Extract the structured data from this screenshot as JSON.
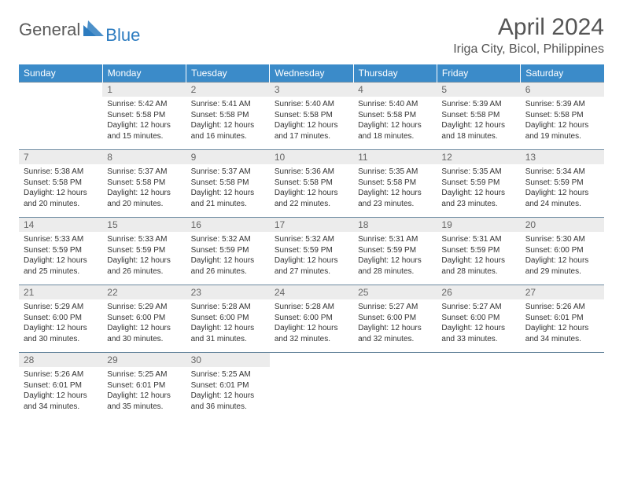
{
  "logo": {
    "text1": "General",
    "text2": "Blue"
  },
  "title": "April 2024",
  "location": "Iriga City, Bicol, Philippines",
  "headers": [
    "Sunday",
    "Monday",
    "Tuesday",
    "Wednesday",
    "Thursday",
    "Friday",
    "Saturday"
  ],
  "header_bg": "#3b8bc9",
  "border_color": "#6c8aa0",
  "daynum_bg": "#ececec",
  "weeks": [
    [
      null,
      {
        "n": "1",
        "sr": "5:42 AM",
        "ss": "5:58 PM",
        "dl": "12 hours and 15 minutes."
      },
      {
        "n": "2",
        "sr": "5:41 AM",
        "ss": "5:58 PM",
        "dl": "12 hours and 16 minutes."
      },
      {
        "n": "3",
        "sr": "5:40 AM",
        "ss": "5:58 PM",
        "dl": "12 hours and 17 minutes."
      },
      {
        "n": "4",
        "sr": "5:40 AM",
        "ss": "5:58 PM",
        "dl": "12 hours and 18 minutes."
      },
      {
        "n": "5",
        "sr": "5:39 AM",
        "ss": "5:58 PM",
        "dl": "12 hours and 18 minutes."
      },
      {
        "n": "6",
        "sr": "5:39 AM",
        "ss": "5:58 PM",
        "dl": "12 hours and 19 minutes."
      }
    ],
    [
      {
        "n": "7",
        "sr": "5:38 AM",
        "ss": "5:58 PM",
        "dl": "12 hours and 20 minutes."
      },
      {
        "n": "8",
        "sr": "5:37 AM",
        "ss": "5:58 PM",
        "dl": "12 hours and 20 minutes."
      },
      {
        "n": "9",
        "sr": "5:37 AM",
        "ss": "5:58 PM",
        "dl": "12 hours and 21 minutes."
      },
      {
        "n": "10",
        "sr": "5:36 AM",
        "ss": "5:58 PM",
        "dl": "12 hours and 22 minutes."
      },
      {
        "n": "11",
        "sr": "5:35 AM",
        "ss": "5:58 PM",
        "dl": "12 hours and 23 minutes."
      },
      {
        "n": "12",
        "sr": "5:35 AM",
        "ss": "5:59 PM",
        "dl": "12 hours and 23 minutes."
      },
      {
        "n": "13",
        "sr": "5:34 AM",
        "ss": "5:59 PM",
        "dl": "12 hours and 24 minutes."
      }
    ],
    [
      {
        "n": "14",
        "sr": "5:33 AM",
        "ss": "5:59 PM",
        "dl": "12 hours and 25 minutes."
      },
      {
        "n": "15",
        "sr": "5:33 AM",
        "ss": "5:59 PM",
        "dl": "12 hours and 26 minutes."
      },
      {
        "n": "16",
        "sr": "5:32 AM",
        "ss": "5:59 PM",
        "dl": "12 hours and 26 minutes."
      },
      {
        "n": "17",
        "sr": "5:32 AM",
        "ss": "5:59 PM",
        "dl": "12 hours and 27 minutes."
      },
      {
        "n": "18",
        "sr": "5:31 AM",
        "ss": "5:59 PM",
        "dl": "12 hours and 28 minutes."
      },
      {
        "n": "19",
        "sr": "5:31 AM",
        "ss": "5:59 PM",
        "dl": "12 hours and 28 minutes."
      },
      {
        "n": "20",
        "sr": "5:30 AM",
        "ss": "6:00 PM",
        "dl": "12 hours and 29 minutes."
      }
    ],
    [
      {
        "n": "21",
        "sr": "5:29 AM",
        "ss": "6:00 PM",
        "dl": "12 hours and 30 minutes."
      },
      {
        "n": "22",
        "sr": "5:29 AM",
        "ss": "6:00 PM",
        "dl": "12 hours and 30 minutes."
      },
      {
        "n": "23",
        "sr": "5:28 AM",
        "ss": "6:00 PM",
        "dl": "12 hours and 31 minutes."
      },
      {
        "n": "24",
        "sr": "5:28 AM",
        "ss": "6:00 PM",
        "dl": "12 hours and 32 minutes."
      },
      {
        "n": "25",
        "sr": "5:27 AM",
        "ss": "6:00 PM",
        "dl": "12 hours and 32 minutes."
      },
      {
        "n": "26",
        "sr": "5:27 AM",
        "ss": "6:00 PM",
        "dl": "12 hours and 33 minutes."
      },
      {
        "n": "27",
        "sr": "5:26 AM",
        "ss": "6:01 PM",
        "dl": "12 hours and 34 minutes."
      }
    ],
    [
      {
        "n": "28",
        "sr": "5:26 AM",
        "ss": "6:01 PM",
        "dl": "12 hours and 34 minutes."
      },
      {
        "n": "29",
        "sr": "5:25 AM",
        "ss": "6:01 PM",
        "dl": "12 hours and 35 minutes."
      },
      {
        "n": "30",
        "sr": "5:25 AM",
        "ss": "6:01 PM",
        "dl": "12 hours and 36 minutes."
      },
      null,
      null,
      null,
      null
    ]
  ],
  "labels": {
    "sunrise": "Sunrise:",
    "sunset": "Sunset:",
    "daylight": "Daylight:"
  }
}
